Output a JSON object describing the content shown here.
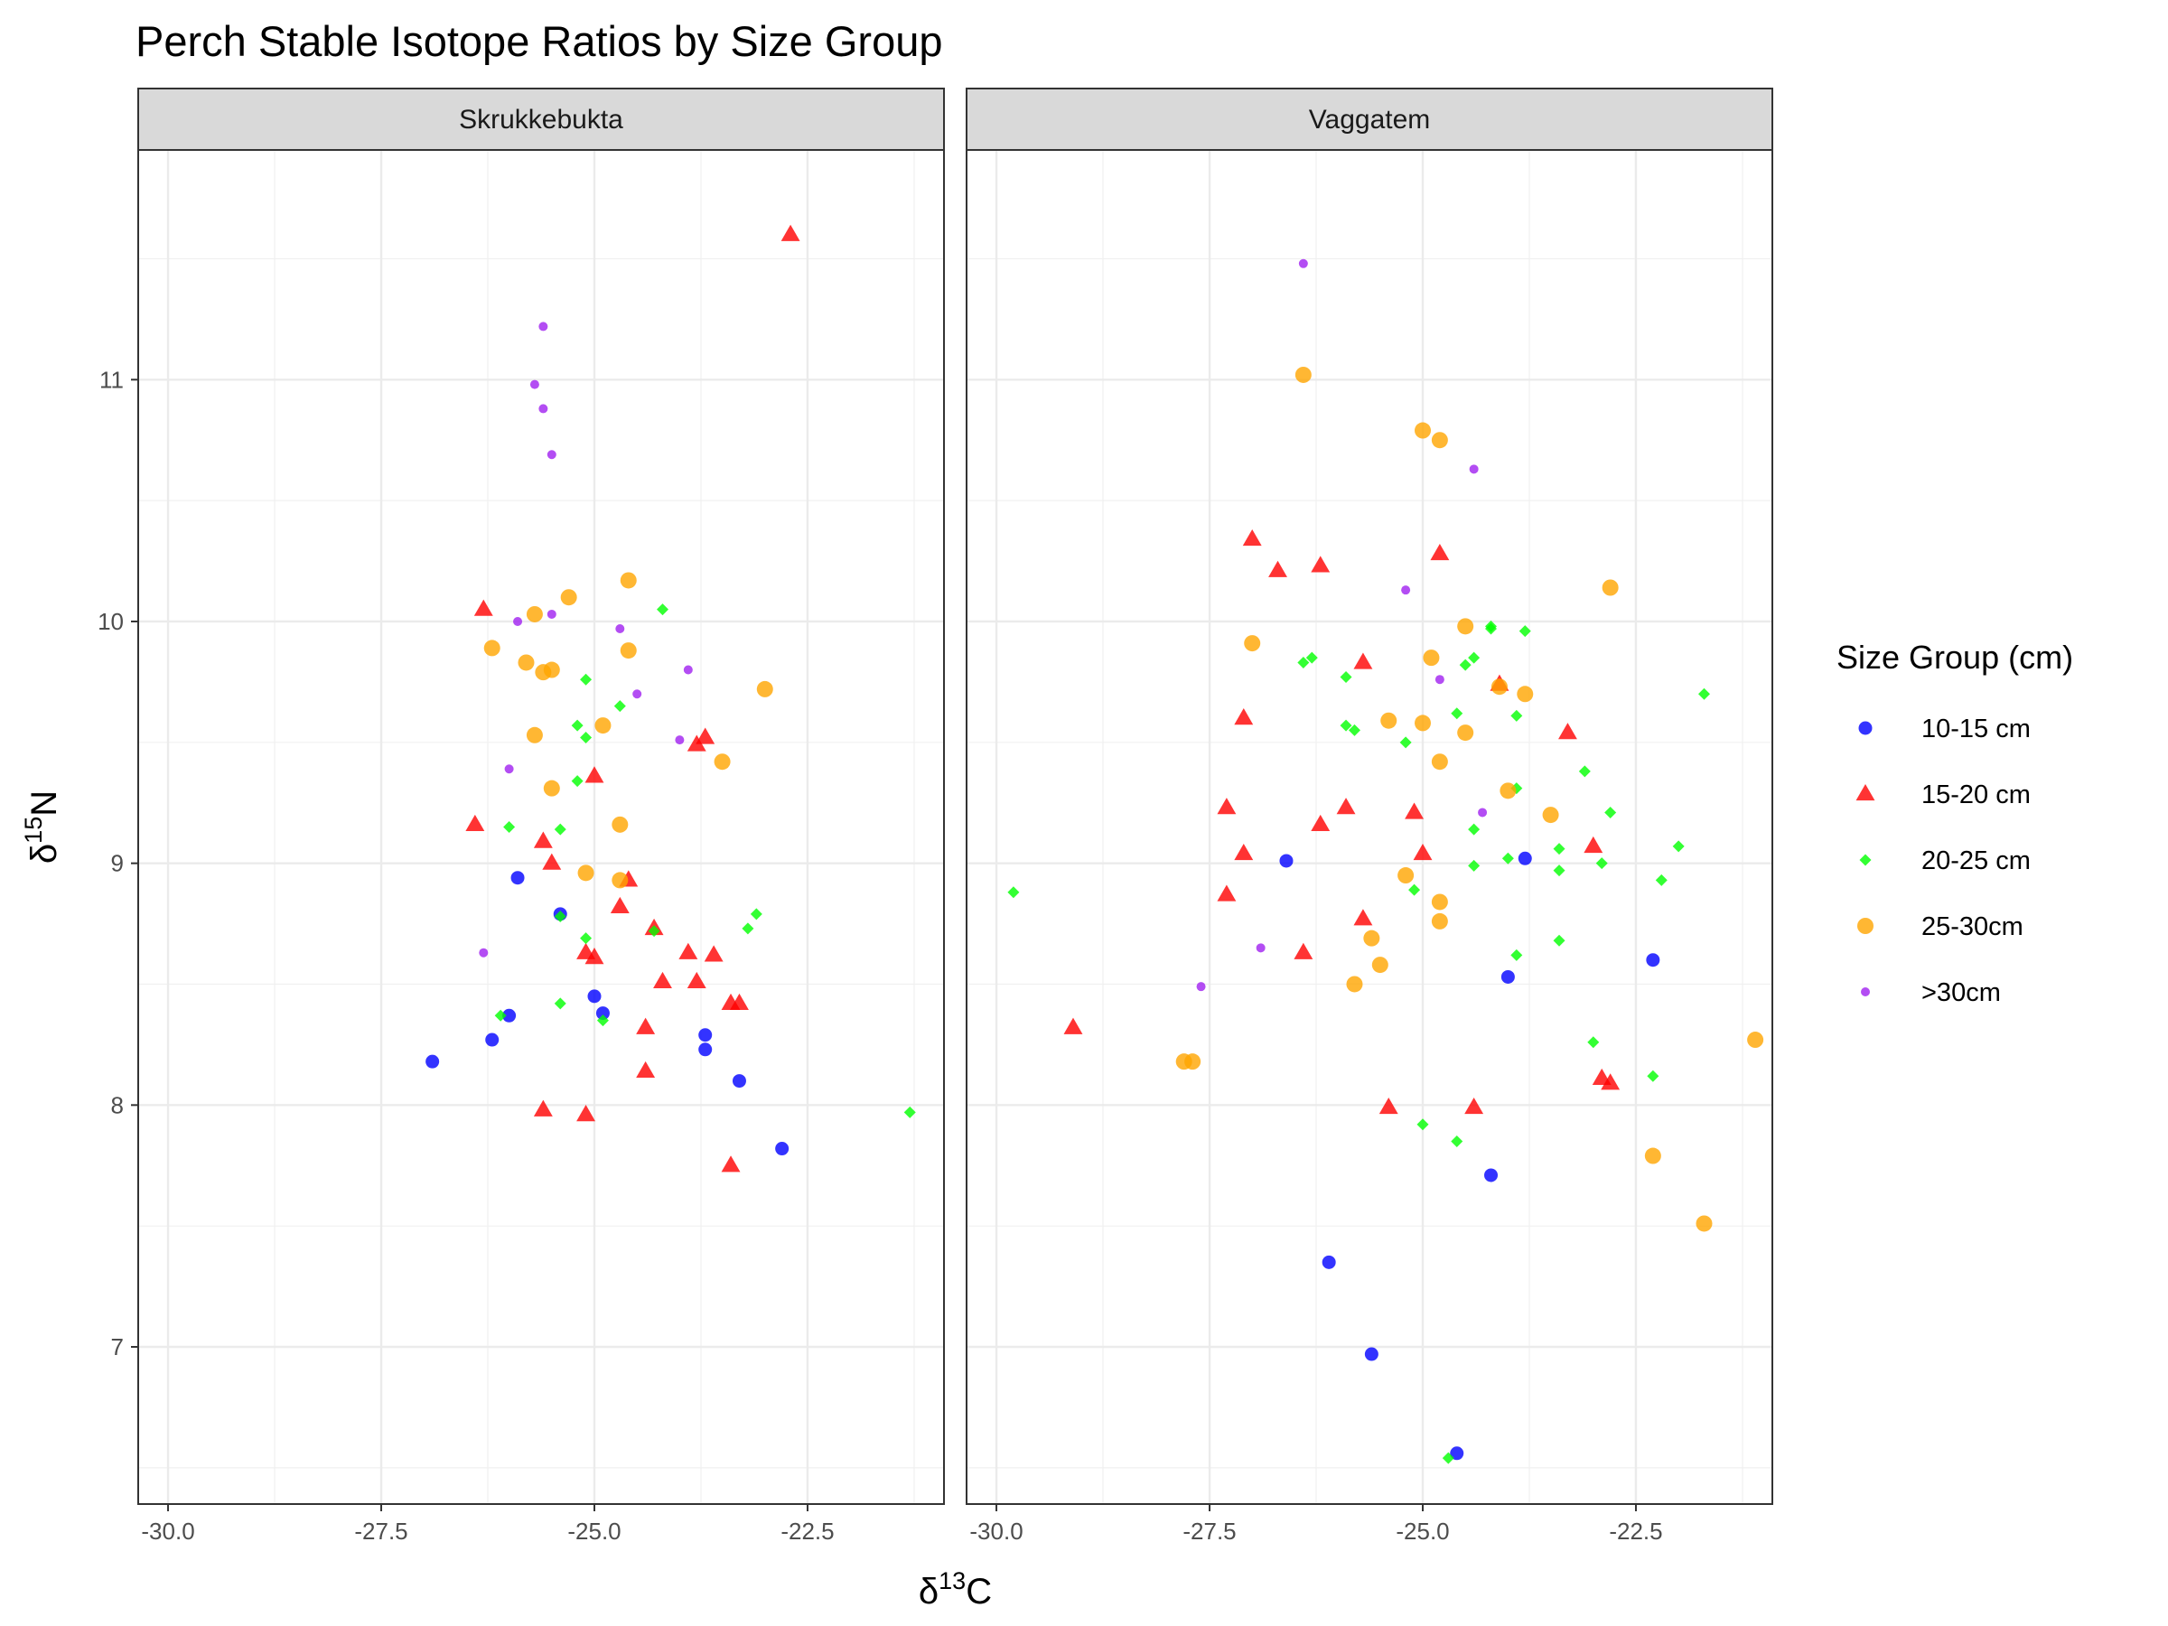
{
  "chart_data": {
    "type": "scatter",
    "title": "Perch Stable Isotope Ratios by Size Group",
    "xlabel": {
      "base": "δ",
      "sup": "13",
      "rest": "C"
    },
    "ylabel": {
      "base": "δ",
      "sup": "15",
      "rest": "N"
    },
    "xlim": [
      -30.35,
      -20.9
    ],
    "ylim": [
      6.35,
      11.95
    ],
    "x_ticks": [
      -30.0,
      -27.5,
      -25.0,
      -22.5
    ],
    "x_tick_labels": [
      "-30.0",
      "-27.5",
      "-25.0",
      "-22.5"
    ],
    "y_ticks": [
      7,
      8,
      9,
      10,
      11
    ],
    "y_tick_labels": [
      "7",
      "8",
      "9",
      "10",
      "11"
    ],
    "grid": true,
    "legend": {
      "title": "Size Group (cm)",
      "position": "right",
      "entries": [
        {
          "label": "10-15 cm",
          "color": "#0000ff",
          "shape": "circle-small"
        },
        {
          "label": "15-20 cm",
          "color": "#ff0000",
          "shape": "triangle"
        },
        {
          "label": "20-25 cm",
          "color": "#00ff00",
          "shape": "diamond"
        },
        {
          "label": "25-30cm",
          "color": "#ffa500",
          "shape": "circle-large"
        },
        {
          "label": ">30cm",
          "color": "#a020f0",
          "shape": "circle-tiny"
        }
      ]
    },
    "panels": [
      {
        "name": "Skrukkebukta",
        "series": [
          {
            "name": "10-15 cm",
            "points": [
              [
                -26.9,
                8.18
              ],
              [
                -26.2,
                8.27
              ],
              [
                -26.0,
                8.37
              ],
              [
                -25.9,
                8.94
              ],
              [
                -25.4,
                8.79
              ],
              [
                -25.0,
                8.45
              ],
              [
                -24.9,
                8.38
              ],
              [
                -23.7,
                8.23
              ],
              [
                -23.7,
                8.29
              ],
              [
                -23.3,
                8.1
              ],
              [
                -22.8,
                7.82
              ]
            ]
          },
          {
            "name": "15-20 cm",
            "points": [
              [
                -26.3,
                10.05
              ],
              [
                -26.4,
                9.16
              ],
              [
                -25.6,
                9.09
              ],
              [
                -25.5,
                9.0
              ],
              [
                -25.0,
                9.36
              ],
              [
                -25.1,
                8.63
              ],
              [
                -25.0,
                8.61
              ],
              [
                -24.7,
                8.82
              ],
              [
                -24.6,
                8.93
              ],
              [
                -24.3,
                8.73
              ],
              [
                -24.2,
                8.51
              ],
              [
                -24.4,
                8.32
              ],
              [
                -24.4,
                8.14
              ],
              [
                -23.9,
                8.63
              ],
              [
                -23.8,
                8.51
              ],
              [
                -23.6,
                8.62
              ],
              [
                -23.8,
                9.49
              ],
              [
                -23.7,
                9.52
              ],
              [
                -23.4,
                8.42
              ],
              [
                -23.3,
                8.42
              ],
              [
                -23.4,
                7.75
              ],
              [
                -25.6,
                7.98
              ],
              [
                -25.1,
                7.96
              ],
              [
                -22.7,
                11.6
              ]
            ]
          },
          {
            "name": "20-25 cm",
            "points": [
              [
                -26.1,
                8.37
              ],
              [
                -26.0,
                9.15
              ],
              [
                -25.4,
                9.14
              ],
              [
                -25.2,
                9.34
              ],
              [
                -25.2,
                9.57
              ],
              [
                -25.1,
                9.52
              ],
              [
                -25.1,
                9.76
              ],
              [
                -24.7,
                9.65
              ],
              [
                -24.2,
                10.05
              ],
              [
                -25.4,
                8.78
              ],
              [
                -25.1,
                8.69
              ],
              [
                -24.9,
                8.35
              ],
              [
                -25.4,
                8.42
              ],
              [
                -24.3,
                8.72
              ],
              [
                -23.2,
                8.73
              ],
              [
                -23.1,
                8.79
              ],
              [
                -21.3,
                7.97
              ]
            ]
          },
          {
            "name": "25-30cm",
            "points": [
              [
                -26.2,
                9.89
              ],
              [
                -25.7,
                10.03
              ],
              [
                -25.8,
                9.83
              ],
              [
                -25.6,
                9.79
              ],
              [
                -25.5,
                9.8
              ],
              [
                -25.3,
                10.1
              ],
              [
                -25.7,
                9.53
              ],
              [
                -25.5,
                9.31
              ],
              [
                -24.9,
                9.57
              ],
              [
                -24.6,
                10.17
              ],
              [
                -24.6,
                9.88
              ],
              [
                -25.1,
                8.96
              ],
              [
                -24.7,
                9.16
              ],
              [
                -24.7,
                8.93
              ],
              [
                -23.5,
                9.42
              ],
              [
                -23.0,
                9.72
              ]
            ]
          },
          {
            "name": ">30cm",
            "points": [
              [
                -25.6,
                11.22
              ],
              [
                -25.7,
                10.98
              ],
              [
                -25.6,
                10.88
              ],
              [
                -25.5,
                10.69
              ],
              [
                -25.9,
                10.0
              ],
              [
                -25.5,
                10.03
              ],
              [
                -24.7,
                9.97
              ],
              [
                -23.9,
                9.8
              ],
              [
                -24.5,
                9.7
              ],
              [
                -24.0,
                9.51
              ],
              [
                -26.0,
                9.39
              ],
              [
                -26.3,
                8.63
              ]
            ]
          }
        ]
      },
      {
        "name": "Vaggatem",
        "series": [
          {
            "name": "10-15 cm",
            "points": [
              [
                -26.6,
                9.01
              ],
              [
                -23.8,
                9.02
              ],
              [
                -24.0,
                8.53
              ],
              [
                -22.3,
                8.6
              ],
              [
                -24.2,
                7.71
              ],
              [
                -26.1,
                7.35
              ],
              [
                -25.6,
                6.97
              ],
              [
                -24.6,
                6.56
              ]
            ]
          },
          {
            "name": "15-20 cm",
            "points": [
              [
                -27.0,
                10.34
              ],
              [
                -26.7,
                10.21
              ],
              [
                -26.2,
                10.23
              ],
              [
                -24.8,
                10.28
              ],
              [
                -25.7,
                9.83
              ],
              [
                -24.1,
                9.74
              ],
              [
                -27.1,
                9.6
              ],
              [
                -23.3,
                9.54
              ],
              [
                -27.3,
                9.23
              ],
              [
                -27.1,
                9.04
              ],
              [
                -27.3,
                8.87
              ],
              [
                -26.2,
                9.16
              ],
              [
                -25.9,
                9.23
              ],
              [
                -25.1,
                9.21
              ],
              [
                -25.0,
                9.04
              ],
              [
                -23.0,
                9.07
              ],
              [
                -25.7,
                8.77
              ],
              [
                -26.4,
                8.63
              ],
              [
                -29.1,
                8.32
              ],
              [
                -25.4,
                7.99
              ],
              [
                -24.4,
                7.99
              ],
              [
                -22.9,
                8.11
              ],
              [
                -22.8,
                8.09
              ]
            ]
          },
          {
            "name": "20-25 cm",
            "points": [
              [
                -29.8,
                8.88
              ],
              [
                -26.4,
                9.83
              ],
              [
                -26.3,
                9.85
              ],
              [
                -25.9,
                9.77
              ],
              [
                -25.8,
                9.55
              ],
              [
                -25.9,
                9.57
              ],
              [
                -25.2,
                9.5
              ],
              [
                -24.6,
                9.62
              ],
              [
                -24.5,
                9.82
              ],
              [
                -24.4,
                9.85
              ],
              [
                -24.2,
                9.97
              ],
              [
                -24.2,
                9.98
              ],
              [
                -23.8,
                9.96
              ],
              [
                -23.9,
                9.61
              ],
              [
                -23.1,
                9.38
              ],
              [
                -21.7,
                9.7
              ],
              [
                -24.4,
                9.14
              ],
              [
                -23.9,
                9.31
              ],
              [
                -23.4,
                9.06
              ],
              [
                -22.8,
                9.21
              ],
              [
                -22.0,
                9.07
              ],
              [
                -24.4,
                8.99
              ],
              [
                -24.0,
                9.02
              ],
              [
                -23.4,
                8.97
              ],
              [
                -22.9,
                9.0
              ],
              [
                -22.2,
                8.93
              ],
              [
                -25.1,
                8.89
              ],
              [
                -23.9,
                8.62
              ],
              [
                -23.4,
                8.68
              ],
              [
                -23.0,
                8.26
              ],
              [
                -22.3,
                8.12
              ],
              [
                -25.0,
                7.92
              ],
              [
                -24.6,
                7.85
              ],
              [
                -24.7,
                6.54
              ]
            ]
          },
          {
            "name": "25-30cm",
            "points": [
              [
                -26.4,
                11.02
              ],
              [
                -25.0,
                10.79
              ],
              [
                -24.8,
                10.75
              ],
              [
                -22.8,
                10.14
              ],
              [
                -27.0,
                9.91
              ],
              [
                -24.5,
                9.98
              ],
              [
                -24.9,
                9.85
              ],
              [
                -24.1,
                9.73
              ],
              [
                -23.8,
                9.7
              ],
              [
                -25.4,
                9.59
              ],
              [
                -25.0,
                9.58
              ],
              [
                -24.5,
                9.54
              ],
              [
                -24.8,
                9.42
              ],
              [
                -24.0,
                9.3
              ],
              [
                -23.5,
                9.2
              ],
              [
                -25.2,
                8.95
              ],
              [
                -24.8,
                8.84
              ],
              [
                -24.8,
                8.76
              ],
              [
                -25.6,
                8.69
              ],
              [
                -25.5,
                8.58
              ],
              [
                -25.8,
                8.5
              ],
              [
                -27.8,
                8.18
              ],
              [
                -27.7,
                8.18
              ],
              [
                -21.1,
                8.27
              ],
              [
                -22.3,
                7.79
              ],
              [
                -21.7,
                7.51
              ]
            ]
          },
          {
            "name": ">30cm",
            "points": [
              [
                -26.4,
                11.48
              ],
              [
                -24.4,
                10.63
              ],
              [
                -25.2,
                10.13
              ],
              [
                -24.8,
                9.76
              ],
              [
                -24.3,
                9.21
              ],
              [
                -26.9,
                8.65
              ],
              [
                -27.6,
                8.49
              ]
            ]
          }
        ]
      }
    ]
  }
}
